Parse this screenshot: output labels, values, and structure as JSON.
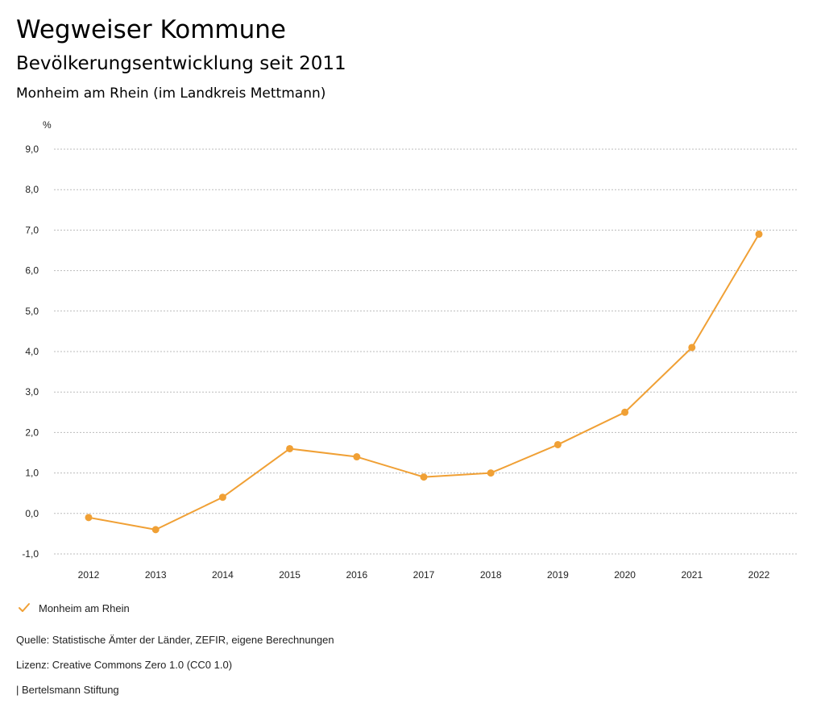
{
  "header": {
    "title": "Wegweiser Kommune",
    "subtitle": "Bevölkerungsentwicklung seit 2011",
    "region": "Monheim am Rhein (im Landkreis Mettmann)"
  },
  "legend": {
    "label": "Monheim am Rhein",
    "icon": "check-icon"
  },
  "footer": {
    "source": "Quelle: Statistische Ämter der Länder, ZEFIR, eigene Berechnungen",
    "license": "Lizenz: Creative Commons Zero 1.0 (CC0 1.0)",
    "publisher": "| Bertelsmann Stiftung"
  },
  "colors": {
    "series": "#F0A035",
    "grid": "#bbbbbb"
  },
  "chart_data": {
    "type": "line",
    "title": "Bevölkerungsentwicklung seit 2011",
    "subtitle": "Monheim am Rhein (im Landkreis Mettmann)",
    "xlabel": "",
    "ylabel": "%",
    "x": [
      "2012",
      "2013",
      "2014",
      "2015",
      "2016",
      "2017",
      "2018",
      "2019",
      "2020",
      "2021",
      "2022"
    ],
    "series": [
      {
        "name": "Monheim am Rhein",
        "values": [
          -0.1,
          -0.4,
          0.4,
          1.6,
          1.4,
          0.9,
          1.0,
          1.7,
          2.5,
          4.1,
          6.9
        ]
      }
    ],
    "ylim": [
      -1,
      9
    ],
    "yticks": [
      -1,
      0,
      1,
      2,
      3,
      4,
      5,
      6,
      7,
      8,
      9
    ],
    "ytick_labels": [
      "-1,0",
      "0,0",
      "1,0",
      "2,0",
      "3,0",
      "4,0",
      "5,0",
      "6,0",
      "7,0",
      "8,0",
      "9,0"
    ],
    "grid": true,
    "legend_position": "bottom-left"
  }
}
